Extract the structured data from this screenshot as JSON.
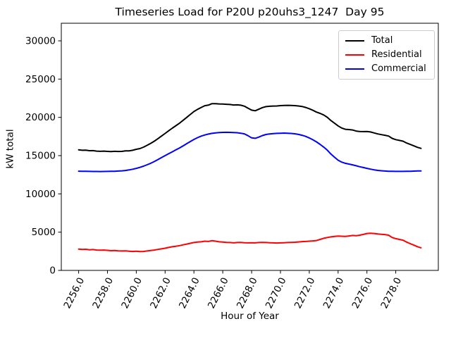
{
  "chart_data": {
    "type": "line",
    "title": "Timeseries Load for P20U p20uhs3_1247  Day 95",
    "xlabel": "Hour of Year",
    "ylabel": "kW total",
    "xlim": [
      2254.8,
      2280.95
    ],
    "ylim": [
      0,
      32300
    ],
    "grid": false,
    "legend_position": "upper right",
    "x_ticks": [
      2256,
      2258,
      2260,
      2262,
      2264,
      2266,
      2268,
      2270,
      2272,
      2274,
      2276,
      2278
    ],
    "x_tick_labels": [
      "2256.0",
      "2258.0",
      "2260.0",
      "2262.0",
      "2264.0",
      "2266.0",
      "2268.0",
      "2270.0",
      "2272.0",
      "2274.0",
      "2276.0",
      "2278.0"
    ],
    "y_ticks": [
      0,
      5000,
      10000,
      15000,
      20000,
      25000,
      30000
    ],
    "y_tick_labels": [
      "0",
      "5000",
      "10000",
      "15000",
      "20000",
      "25000",
      "30000"
    ],
    "x": [
      2256,
      2256.25,
      2256.5,
      2256.75,
      2257,
      2257.25,
      2257.5,
      2257.75,
      2258,
      2258.25,
      2258.5,
      2258.75,
      2259,
      2259.25,
      2259.5,
      2259.75,
      2260,
      2260.25,
      2260.5,
      2260.75,
      2261,
      2261.25,
      2261.5,
      2261.75,
      2262,
      2262.25,
      2262.5,
      2262.75,
      2263,
      2263.25,
      2263.5,
      2263.75,
      2264,
      2264.25,
      2264.5,
      2264.75,
      2265,
      2265.25,
      2265.5,
      2265.75,
      2266,
      2266.25,
      2266.5,
      2266.75,
      2267,
      2267.25,
      2267.5,
      2267.75,
      2268,
      2268.25,
      2268.5,
      2268.75,
      2269,
      2269.25,
      2269.5,
      2269.75,
      2270,
      2270.25,
      2270.5,
      2270.75,
      2271,
      2271.25,
      2271.5,
      2271.75,
      2272,
      2272.25,
      2272.5,
      2272.75,
      2273,
      2273.25,
      2273.5,
      2273.75,
      2274,
      2274.25,
      2274.5,
      2274.75,
      2275,
      2275.25,
      2275.5,
      2275.75,
      2276,
      2276.25,
      2276.5,
      2276.75,
      2277,
      2277.25,
      2277.5,
      2277.75,
      2278,
      2278.25,
      2278.5,
      2278.75,
      2279,
      2279.25,
      2279.5,
      2279.75
    ],
    "series": [
      {
        "name": "Total",
        "color": "#000000",
        "values": [
          15750,
          15700,
          15710,
          15640,
          15650,
          15585,
          15560,
          15585,
          15555,
          15525,
          15560,
          15540,
          15550,
          15620,
          15630,
          15700,
          15830,
          15920,
          16100,
          16340,
          16600,
          16890,
          17220,
          17560,
          17900,
          18250,
          18590,
          18910,
          19240,
          19620,
          20000,
          20380,
          20760,
          21050,
          21290,
          21520,
          21600,
          21790,
          21790,
          21750,
          21740,
          21710,
          21680,
          21620,
          21630,
          21590,
          21460,
          21200,
          20940,
          20860,
          21060,
          21280,
          21400,
          21450,
          21480,
          21490,
          21530,
          21560,
          21570,
          21560,
          21530,
          21490,
          21420,
          21290,
          21130,
          20930,
          20690,
          20520,
          20310,
          20010,
          19580,
          19240,
          18880,
          18610,
          18440,
          18400,
          18350,
          18210,
          18150,
          18140,
          18150,
          18090,
          17960,
          17830,
          17740,
          17660,
          17560,
          17250,
          17090,
          16985,
          16885,
          16645,
          16460,
          16275,
          16090,
          15950
        ]
      },
      {
        "name": "Residential",
        "color": "#ff0000",
        "values": [
          2780,
          2740,
          2760,
          2700,
          2720,
          2660,
          2640,
          2660,
          2620,
          2580,
          2600,
          2560,
          2540,
          2560,
          2500,
          2480,
          2500,
          2460,
          2480,
          2540,
          2600,
          2660,
          2740,
          2820,
          2900,
          3000,
          3090,
          3160,
          3240,
          3340,
          3440,
          3540,
          3640,
          3700,
          3740,
          3820,
          3780,
          3880,
          3820,
          3740,
          3700,
          3660,
          3640,
          3600,
          3640,
          3660,
          3620,
          3600,
          3620,
          3600,
          3640,
          3660,
          3640,
          3620,
          3600,
          3580,
          3600,
          3620,
          3640,
          3660,
          3680,
          3720,
          3760,
          3780,
          3820,
          3860,
          3900,
          4050,
          4200,
          4300,
          4380,
          4440,
          4480,
          4460,
          4440,
          4500,
          4560,
          4540,
          4600,
          4700,
          4820,
          4860,
          4820,
          4760,
          4720,
          4680,
          4600,
          4300,
          4150,
          4050,
          3950,
          3700,
          3500,
          3300,
          3100,
          2950
        ]
      },
      {
        "name": "Commercial",
        "color": "#0000ff",
        "values": [
          12970,
          12960,
          12950,
          12940,
          12930,
          12925,
          12920,
          12925,
          12935,
          12945,
          12960,
          12980,
          13010,
          13060,
          13130,
          13220,
          13330,
          13460,
          13620,
          13800,
          14000,
          14230,
          14480,
          14740,
          15000,
          15250,
          15500,
          15750,
          16000,
          16280,
          16560,
          16840,
          17120,
          17350,
          17550,
          17700,
          17820,
          17910,
          17970,
          18010,
          18040,
          18050,
          18040,
          18020,
          17990,
          17930,
          17840,
          17600,
          17320,
          17260,
          17420,
          17620,
          17760,
          17830,
          17880,
          17910,
          17930,
          17940,
          17930,
          17900,
          17850,
          17770,
          17660,
          17510,
          17310,
          17070,
          16790,
          16470,
          16110,
          15710,
          15200,
          14800,
          14400,
          14150,
          14000,
          13900,
          13790,
          13670,
          13550,
          13440,
          13330,
          13230,
          13140,
          13070,
          13020,
          12980,
          12960,
          12950,
          12940,
          12935,
          12935,
          12945,
          12960,
          12975,
          12990,
          13000
        ]
      }
    ]
  }
}
